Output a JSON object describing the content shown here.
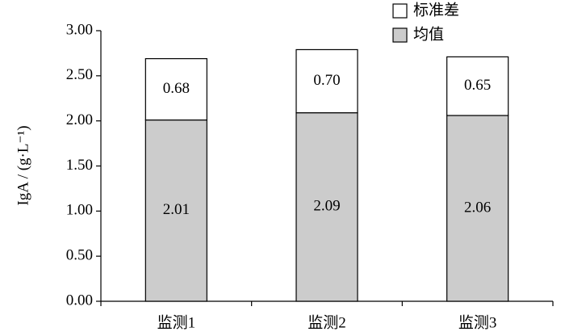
{
  "chart_data": {
    "type": "stacked_bar",
    "y_label": "IgA / (g·L⁻¹)",
    "categories": [
      "监测1",
      "监测2",
      "监测3"
    ],
    "series": [
      {
        "name": "均值",
        "color": "#cccccc",
        "values": [
          2.01,
          2.09,
          2.06
        ],
        "value_labels": [
          "2.01",
          "2.09",
          "2.06"
        ]
      },
      {
        "name": "标准差",
        "color": "#ffffff",
        "values": [
          0.68,
          0.7,
          0.65
        ],
        "value_labels": [
          "0.68",
          "0.70",
          "0.65"
        ]
      }
    ],
    "ylim": [
      0,
      3
    ],
    "yticks": [
      {
        "value": 0,
        "label": "0.00"
      },
      {
        "value": 0.5,
        "label": "0.50"
      },
      {
        "value": 1,
        "label": "1.00"
      },
      {
        "value": 1.5,
        "label": "1.50"
      },
      {
        "value": 2,
        "label": "2.00"
      },
      {
        "value": 2.5,
        "label": "2.50"
      },
      {
        "value": 3,
        "label": "3.00"
      }
    ],
    "legend": "top-right"
  }
}
